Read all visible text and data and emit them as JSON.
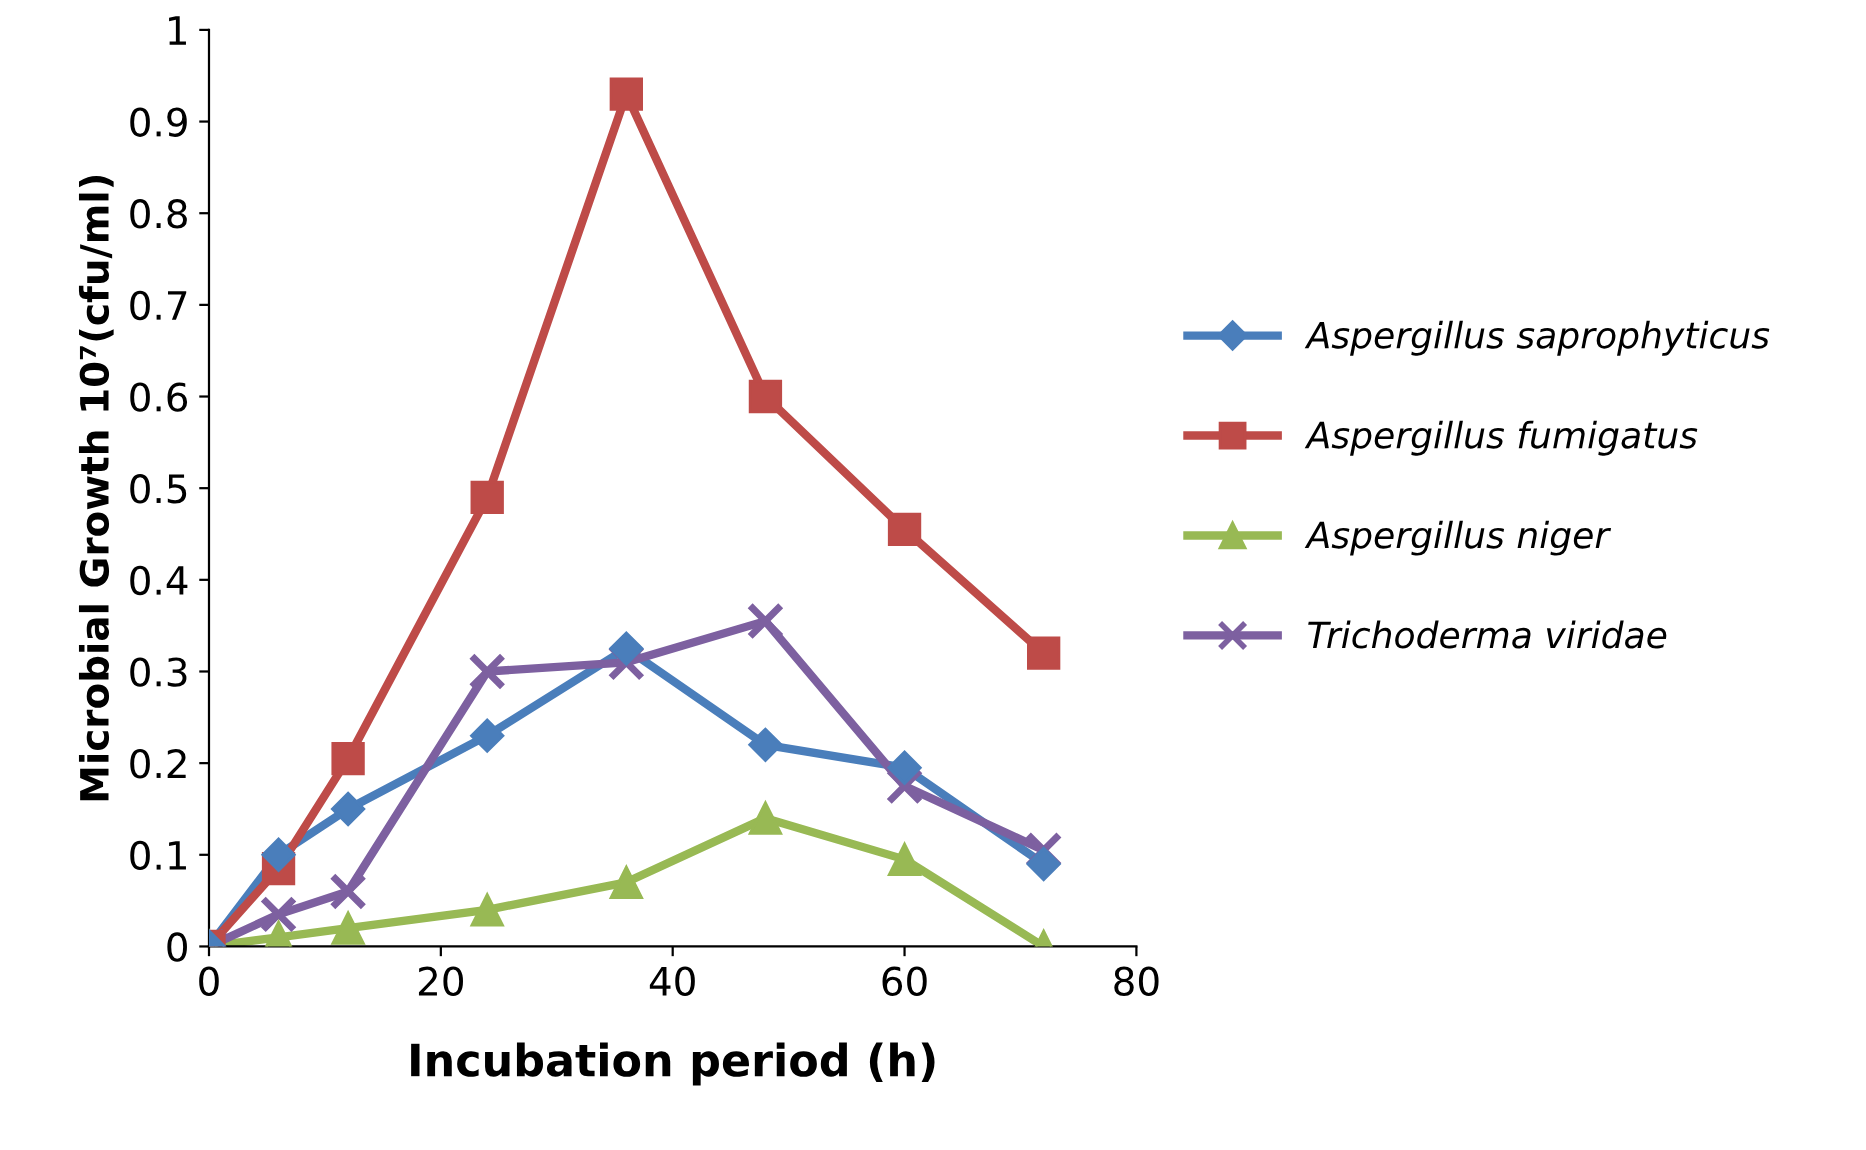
{
  "chart_data": {
    "type": "line",
    "xlabel": "Incubation period (h)",
    "ylabel": "Microbial Growth 10⁷(cfu/ml)",
    "x": [
      0,
      6,
      12,
      24,
      36,
      48,
      60,
      72
    ],
    "series": [
      {
        "name": "Aspergillus saprophyticus",
        "color": "#4a7ebb",
        "marker": "diamond",
        "values": [
          0,
          0.1,
          0.15,
          0.23,
          0.325,
          0.22,
          0.195,
          0.09
        ]
      },
      {
        "name": "Aspergillus fumigatus",
        "color": "#be4b48",
        "marker": "square",
        "values": [
          0,
          0.085,
          0.205,
          0.49,
          0.93,
          0.6,
          0.455,
          0.32
        ]
      },
      {
        "name": "Aspergillus niger",
        "color": "#98b954",
        "marker": "triangle",
        "values": [
          0,
          0.01,
          0.02,
          0.04,
          0.07,
          0.14,
          0.095,
          0
        ]
      },
      {
        "name": "Trichoderma viridae",
        "color": "#7d60a0",
        "marker": "cross",
        "values": [
          0,
          0.035,
          0.06,
          0.3,
          0.31,
          0.355,
          0.175,
          0.105
        ]
      }
    ],
    "xlim": [
      0,
      80
    ],
    "xticks": [
      0,
      20,
      40,
      60,
      80
    ],
    "ylim": [
      0,
      1
    ],
    "yticks": [
      0,
      0.1,
      0.2,
      0.3,
      0.4,
      0.5,
      0.6,
      0.7,
      0.8,
      0.9,
      1
    ],
    "grid": false,
    "legend": "right",
    "line_style": "solid"
  }
}
